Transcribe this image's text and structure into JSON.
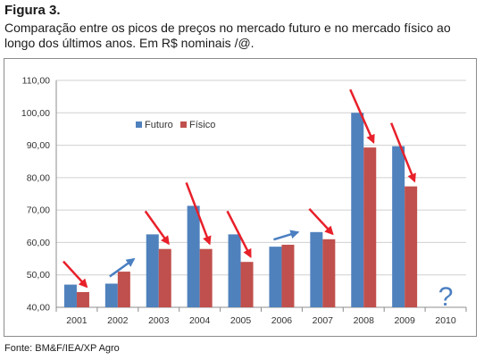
{
  "figure": {
    "label": "Figura 3.",
    "caption": "Comparação entre os picos de preços no mercado futuro e no mercado físico ao longo dos últimos anos. Em R$ nominais /@.",
    "source": "Fonte: BM&F/IEA/XP Agro"
  },
  "chart_data": {
    "type": "bar",
    "categories": [
      "2001",
      "2002",
      "2003",
      "2004",
      "2005",
      "2006",
      "2007",
      "2008",
      "2009",
      "2010"
    ],
    "series": [
      {
        "name": "Futuro",
        "color": "#4f81bd",
        "values": [
          47,
          47.3,
          62.5,
          71.3,
          62.5,
          58.7,
          63.2,
          100,
          89.7,
          null
        ]
      },
      {
        "name": "Físico",
        "color": "#c0504d",
        "values": [
          44.7,
          51,
          58,
          58,
          54,
          59.3,
          61,
          89.3,
          77.3,
          null
        ]
      }
    ],
    "ylim": [
      40,
      110
    ],
    "yticks": [
      "40,00",
      "50,00",
      "60,00",
      "70,00",
      "80,00",
      "90,00",
      "100,00",
      "110,00"
    ],
    "grid": true,
    "legend_position": "top-left inside plot",
    "annotations": {
      "arrows": [
        {
          "category": "2001",
          "direction": "down",
          "color": "red"
        },
        {
          "category": "2002",
          "direction": "up",
          "color": "blue"
        },
        {
          "category": "2003",
          "direction": "down",
          "color": "red"
        },
        {
          "category": "2004",
          "direction": "down",
          "color": "red"
        },
        {
          "category": "2005",
          "direction": "down",
          "color": "red"
        },
        {
          "category": "2006",
          "direction": "up",
          "color": "blue"
        },
        {
          "category": "2007",
          "direction": "down",
          "color": "red"
        },
        {
          "category": "2008",
          "direction": "down",
          "color": "red"
        },
        {
          "category": "2009",
          "direction": "down",
          "color": "red"
        }
      ],
      "question_mark": {
        "category": "2010",
        "text": "?"
      }
    },
    "colors": {
      "arrow_down": "#e8202a",
      "arrow_up": "#4a7fc1",
      "grid": "#d0d0d0",
      "axis": "#8c8c8c"
    }
  }
}
